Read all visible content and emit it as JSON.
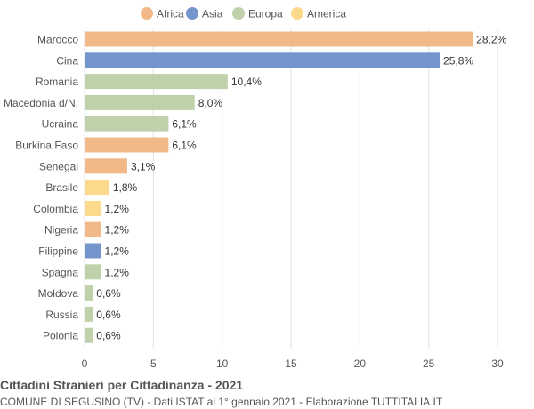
{
  "chart_data": {
    "type": "bar",
    "orientation": "horizontal",
    "categories": [
      "Marocco",
      "Cina",
      "Romania",
      "Macedonia d/N.",
      "Ucraina",
      "Burkina Faso",
      "Senegal",
      "Brasile",
      "Colombia",
      "Nigeria",
      "Filippine",
      "Spagna",
      "Moldova",
      "Russia",
      "Polonia"
    ],
    "values": [
      28.2,
      25.8,
      10.4,
      8.0,
      6.1,
      6.1,
      3.1,
      1.8,
      1.2,
      1.2,
      1.2,
      1.2,
      0.6,
      0.6,
      0.6
    ],
    "value_labels": [
      "28,2%",
      "25,8%",
      "10,4%",
      "8,0%",
      "6,1%",
      "6,1%",
      "3,1%",
      "1,8%",
      "1,2%",
      "1,2%",
      "1,2%",
      "1,2%",
      "0,6%",
      "0,6%",
      "0,6%"
    ],
    "groups": [
      "Africa",
      "Asia",
      "Europa",
      "Europa",
      "Europa",
      "Africa",
      "Africa",
      "America",
      "America",
      "Africa",
      "Asia",
      "Europa",
      "Europa",
      "Europa",
      "Europa"
    ],
    "legend": [
      {
        "name": "Africa",
        "color": "#f0b987"
      },
      {
        "name": "Asia",
        "color": "#7595cd"
      },
      {
        "name": "Europa",
        "color": "#bed1ab"
      },
      {
        "name": "America",
        "color": "#fdd98b"
      }
    ],
    "legend_placement": "top",
    "xlim": [
      0,
      30
    ],
    "xticks": [
      0,
      5,
      10,
      15,
      20,
      25,
      30
    ],
    "grid": true,
    "title": "Cittadini Stranieri per Cittadinanza - 2021",
    "subtitle": "COMUNE DI SEGUSINO (TV) - Dati ISTAT al 1° gennaio 2021 - Elaborazione TUTTITALIA.IT"
  }
}
